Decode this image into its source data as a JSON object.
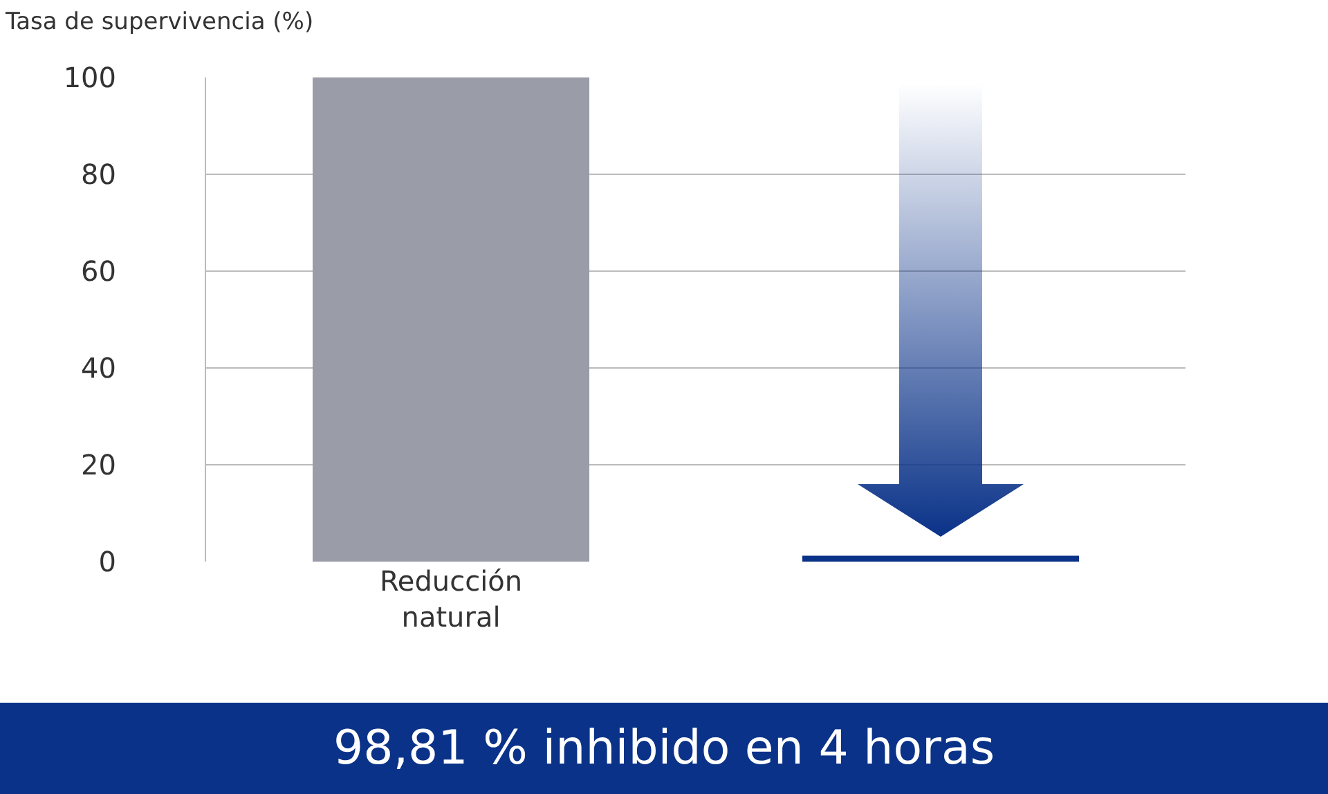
{
  "chart_data": {
    "type": "bar",
    "ylabel": "Tasa de supervivencia (%)",
    "categories": [
      "Reducción natural",
      null
    ],
    "values": [
      100,
      1.2
    ],
    "colors": [
      "#9a9da8",
      "#0a3288"
    ],
    "ylim": [
      0,
      100
    ],
    "yticks": [
      0,
      20,
      40,
      60,
      80,
      100
    ],
    "grid": "y",
    "annotations": [
      "98,81 % inhibido en 4 horas"
    ]
  }
}
